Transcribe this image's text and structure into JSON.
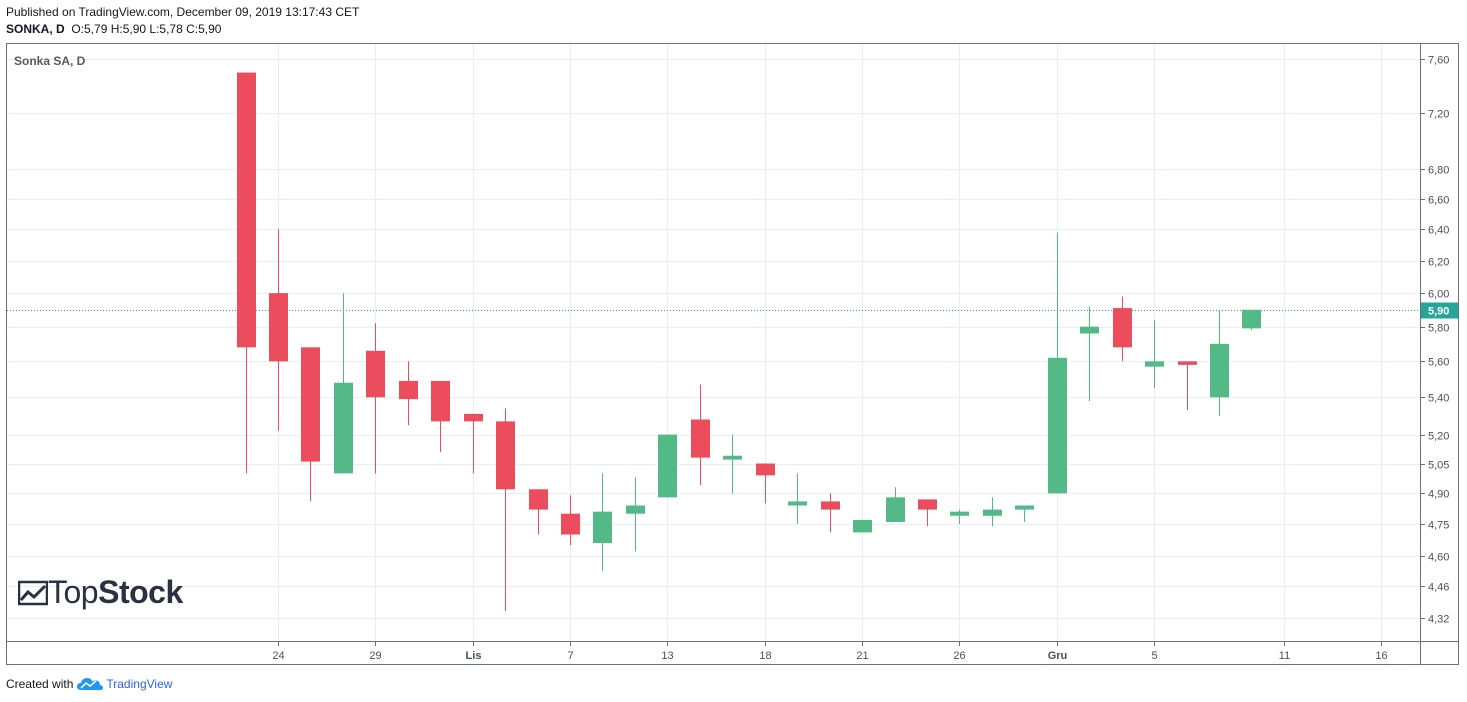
{
  "header": {
    "published": "Published on TradingView.com, December 09, 2019 13:17:43 CET",
    "symbol": "SONKA, D",
    "ohlc": "O:5,79 H:5,90 L:5,78 C:5,90"
  },
  "chart_name": "Sonka SA, D",
  "watermark": {
    "light": "Top",
    "bold": "Stock"
  },
  "footer": {
    "created": "Created with",
    "brand": "TradingView"
  },
  "colors": {
    "up": "#53b987",
    "down": "#eb4d5c",
    "grid": "#e9eef3",
    "last_line": "#26a69a"
  },
  "chart_data": {
    "type": "candlestick",
    "title": "Sonka SA, D",
    "y_axis": {
      "scale": "log",
      "ylim": [
        4.22,
        7.72
      ],
      "ticks": [
        "7,60",
        "7,20",
        "6,80",
        "6,60",
        "6,40",
        "6,20",
        "6,00",
        "5,80",
        "5,60",
        "5,40",
        "5,20",
        "5,05",
        "4,90",
        "4,75",
        "4,60",
        "4,46",
        "4,32"
      ],
      "tick_values": [
        7.6,
        7.2,
        6.8,
        6.6,
        6.4,
        6.2,
        6.0,
        5.8,
        5.6,
        5.4,
        5.2,
        5.05,
        4.9,
        4.75,
        4.6,
        4.46,
        4.32
      ]
    },
    "x_axis": {
      "labels": [
        {
          "label": "24",
          "index": 1
        },
        {
          "label": "29",
          "index": 4
        },
        {
          "label": "Lis",
          "index": 7
        },
        {
          "label": "7",
          "index": 10
        },
        {
          "label": "13",
          "index": 13
        },
        {
          "label": "18",
          "index": 16
        },
        {
          "label": "21",
          "index": 19
        },
        {
          "label": "26",
          "index": 22
        },
        {
          "label": "Gru",
          "index": 25
        },
        {
          "label": "5",
          "index": 28
        },
        {
          "label": "11",
          "index": 32
        },
        {
          "label": "16",
          "index": 35
        }
      ]
    },
    "candles": [
      {
        "o": 7.5,
        "h": 7.5,
        "l": 5.0,
        "c": 5.68
      },
      {
        "o": 6.0,
        "h": 6.4,
        "l": 5.22,
        "c": 5.6
      },
      {
        "o": 5.68,
        "h": 5.68,
        "l": 4.86,
        "c": 5.06
      },
      {
        "o": 5.0,
        "h": 6.0,
        "l": 5.0,
        "c": 5.48
      },
      {
        "o": 5.66,
        "h": 5.82,
        "l": 5.0,
        "c": 5.4
      },
      {
        "o": 5.49,
        "h": 5.6,
        "l": 5.25,
        "c": 5.39
      },
      {
        "o": 5.49,
        "h": 5.49,
        "l": 5.11,
        "c": 5.27
      },
      {
        "o": 5.31,
        "h": 5.31,
        "l": 5.0,
        "c": 5.27
      },
      {
        "o": 5.27,
        "h": 5.34,
        "l": 4.35,
        "c": 4.92
      },
      {
        "o": 4.92,
        "h": 4.92,
        "l": 4.7,
        "c": 4.82
      },
      {
        "o": 4.8,
        "h": 4.89,
        "l": 4.65,
        "c": 4.7
      },
      {
        "o": 4.66,
        "h": 5.0,
        "l": 4.53,
        "c": 4.81
      },
      {
        "o": 4.8,
        "h": 4.98,
        "l": 4.62,
        "c": 4.84
      },
      {
        "o": 4.88,
        "h": 5.2,
        "l": 4.88,
        "c": 5.2
      },
      {
        "o": 5.28,
        "h": 5.47,
        "l": 4.94,
        "c": 5.08
      },
      {
        "o": 5.07,
        "h": 5.2,
        "l": 4.9,
        "c": 5.09
      },
      {
        "o": 5.05,
        "h": 5.05,
        "l": 4.85,
        "c": 4.99
      },
      {
        "o": 4.84,
        "h": 5.0,
        "l": 4.75,
        "c": 4.86
      },
      {
        "o": 4.86,
        "h": 4.9,
        "l": 4.71,
        "c": 4.82
      },
      {
        "o": 4.71,
        "h": 4.77,
        "l": 4.71,
        "c": 4.77
      },
      {
        "o": 4.76,
        "h": 4.93,
        "l": 4.76,
        "c": 4.88
      },
      {
        "o": 4.87,
        "h": 4.87,
        "l": 4.74,
        "c": 4.82
      },
      {
        "o": 4.79,
        "h": 4.82,
        "l": 4.75,
        "c": 4.81
      },
      {
        "o": 4.79,
        "h": 4.88,
        "l": 4.74,
        "c": 4.82
      },
      {
        "o": 4.82,
        "h": 4.84,
        "l": 4.76,
        "c": 4.84
      },
      {
        "o": 4.9,
        "h": 6.38,
        "l": 4.9,
        "c": 5.62
      },
      {
        "o": 5.76,
        "h": 5.92,
        "l": 5.38,
        "c": 5.8
      },
      {
        "o": 5.91,
        "h": 5.98,
        "l": 5.6,
        "c": 5.68
      },
      {
        "o": 5.57,
        "h": 5.84,
        "l": 5.45,
        "c": 5.6
      },
      {
        "o": 5.6,
        "h": 5.6,
        "l": 5.33,
        "c": 5.58
      },
      {
        "o": 5.4,
        "h": 5.9,
        "l": 5.3,
        "c": 5.7
      },
      {
        "o": 5.79,
        "h": 5.9,
        "l": 5.78,
        "c": 5.9
      }
    ],
    "last_price": 5.9,
    "last_price_label": "5,90",
    "grid": true
  }
}
